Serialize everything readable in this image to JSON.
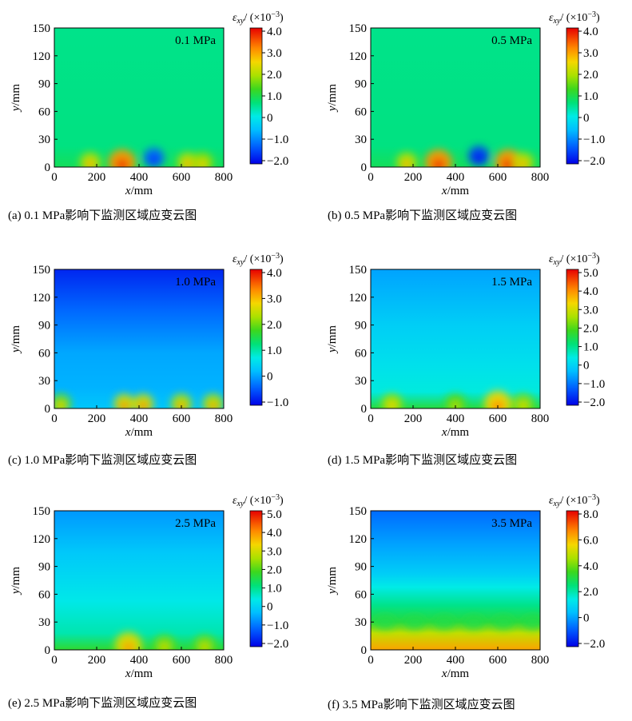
{
  "figure": {
    "charts": [
      {
        "id": "a",
        "caption": "(a) 0.1 MPa影响下监测区域应变云图",
        "pressure_label": "0.1 MPa",
        "colorbar_title": "εxy/(×10⁻³)",
        "colorbar_ticks": [
          "4.0",
          "3.0",
          "2.0",
          "1.0",
          "0",
          "−1.0",
          "−2.0"
        ],
        "colorbar_range": [
          -2.0,
          4.0
        ]
      },
      {
        "id": "b",
        "caption": "(b) 0.5 MPa影响下监测区域应变云图",
        "pressure_label": "0.5 MPa",
        "colorbar_title": "εxy/(×10⁻³)",
        "colorbar_ticks": [
          "4.0",
          "3.0",
          "2.0",
          "1.0",
          "0",
          "−1.0",
          "−2.0"
        ],
        "colorbar_range": [
          -2.0,
          4.0
        ]
      },
      {
        "id": "c",
        "caption": "(c) 1.0 MPa影响下监测区域应变云图",
        "pressure_label": "1.0 MPa",
        "colorbar_title": "εxy/(×10⁻³)",
        "colorbar_ticks": [
          "4.0",
          "3.0",
          "2.0",
          "1.0",
          "0",
          "−1.0"
        ],
        "colorbar_range": [
          -1.0,
          4.0
        ]
      },
      {
        "id": "d",
        "caption": "(d) 1.5 MPa影响下监测区域应变云图",
        "pressure_label": "1.5 MPa",
        "colorbar_title": "εxy/(×10⁻³)",
        "colorbar_ticks": [
          "5.0",
          "4.0",
          "3.0",
          "2.0",
          "1.0",
          "0",
          "−1.0",
          "−2.0"
        ],
        "colorbar_range": [
          -2.0,
          5.0
        ]
      },
      {
        "id": "e",
        "caption": "(e) 2.5 MPa影响下监测区域应变云图",
        "pressure_label": "2.5 MPa",
        "colorbar_title": "εxy/(×10⁻³)",
        "colorbar_ticks": [
          "5.0",
          "4.0",
          "3.0",
          "2.0",
          "1.0",
          "0",
          "−1.0",
          "−2.0"
        ],
        "colorbar_range": [
          -2.0,
          5.0
        ]
      },
      {
        "id": "f",
        "caption": "(f) 3.5 MPa影响下监测区域应变云图",
        "pressure_label": "3.5 MPa",
        "colorbar_title": "εxy/(×10⁻³)",
        "colorbar_ticks": [
          "8.0",
          "6.0",
          "4.0",
          "2.0",
          "0",
          "−2.0"
        ],
        "colorbar_range": [
          -3.0,
          9.0
        ]
      }
    ]
  },
  "chart_data": [
    {
      "type": "heatmap",
      "title": "0.1 MPa",
      "xlabel": "x/mm",
      "ylabel": "y/mm",
      "xlim": [
        0,
        800
      ],
      "ylim": [
        0,
        150
      ],
      "x_ticks": [
        "0",
        "200",
        "400",
        "600",
        "800"
      ],
      "y_ticks": [
        "0",
        "30",
        "60",
        "90",
        "120",
        "150"
      ],
      "colorbar_label": "εxy/(×10⁻³)",
      "colorbar_range": [
        -2.0,
        4.0
      ],
      "background_value": 0.6,
      "hotspots": [
        {
          "x": 170,
          "y": 5,
          "value": 2.0
        },
        {
          "x": 320,
          "y": 5,
          "value": 3.0
        },
        {
          "x": 470,
          "y": 10,
          "value": -1.2
        },
        {
          "x": 630,
          "y": 5,
          "value": 2.0
        },
        {
          "x": 700,
          "y": 5,
          "value": 1.8
        }
      ]
    },
    {
      "type": "heatmap",
      "title": "0.5 MPa",
      "xlabel": "x/mm",
      "ylabel": "y/mm",
      "xlim": [
        0,
        800
      ],
      "ylim": [
        0,
        150
      ],
      "x_ticks": [
        "0",
        "200",
        "400",
        "600",
        "800"
      ],
      "y_ticks": [
        "0",
        "30",
        "60",
        "90",
        "120",
        "150"
      ],
      "colorbar_label": "εxy/(×10⁻³)",
      "colorbar_range": [
        -2.0,
        4.0
      ],
      "background_value": 0.6,
      "hotspots": [
        {
          "x": 170,
          "y": 5,
          "value": 2.0
        },
        {
          "x": 320,
          "y": 5,
          "value": 3.0
        },
        {
          "x": 510,
          "y": 12,
          "value": -1.5
        },
        {
          "x": 650,
          "y": 5,
          "value": 3.0
        },
        {
          "x": 720,
          "y": 5,
          "value": 2.0
        }
      ]
    },
    {
      "type": "heatmap",
      "title": "1.0 MPa",
      "xlabel": "x/mm",
      "ylabel": "y/mm",
      "xlim": [
        0,
        800
      ],
      "ylim": [
        0,
        150
      ],
      "x_ticks": [
        "0",
        "200",
        "400",
        "600",
        "800"
      ],
      "y_ticks": [
        "0",
        "30",
        "60",
        "90",
        "120",
        "150"
      ],
      "colorbar_label": "εxy/(×10⁻³)",
      "colorbar_range": [
        -1.0,
        4.0
      ],
      "background_value": 0.0,
      "hotspots": [
        {
          "x": 30,
          "y": 5,
          "value": 2.0
        },
        {
          "x": 330,
          "y": 5,
          "value": 2.5
        },
        {
          "x": 420,
          "y": 5,
          "value": 2.5
        },
        {
          "x": 600,
          "y": 5,
          "value": 2.3
        },
        {
          "x": 750,
          "y": 5,
          "value": 2.3
        }
      ]
    },
    {
      "type": "heatmap",
      "title": "1.5 MPa",
      "xlabel": "x/mm",
      "ylabel": "y/mm",
      "xlim": [
        0,
        800
      ],
      "ylim": [
        0,
        150
      ],
      "x_ticks": [
        "0",
        "200",
        "400",
        "600",
        "800"
      ],
      "y_ticks": [
        "0",
        "30",
        "60",
        "90",
        "120",
        "150"
      ],
      "colorbar_label": "εxy/(×10⁻³)",
      "colorbar_range": [
        -2.0,
        5.0
      ],
      "background_value": 0.2,
      "hotspots": [
        {
          "x": 100,
          "y": 5,
          "value": 2.5
        },
        {
          "x": 400,
          "y": 5,
          "value": 2.0
        },
        {
          "x": 600,
          "y": 5,
          "value": 3.2
        },
        {
          "x": 720,
          "y": 5,
          "value": 2.3
        }
      ]
    },
    {
      "type": "heatmap",
      "title": "2.5 MPa",
      "xlabel": "x/mm",
      "ylabel": "y/mm",
      "xlim": [
        0,
        800
      ],
      "ylim": [
        0,
        150
      ],
      "x_ticks": [
        "0",
        "200",
        "400",
        "600",
        "800"
      ],
      "y_ticks": [
        "0",
        "30",
        "60",
        "90",
        "120",
        "150"
      ],
      "colorbar_label": "εxy/(×10⁻³)",
      "colorbar_range": [
        -2.0,
        5.0
      ],
      "background_value": 0.3,
      "hotspots": [
        {
          "x": 350,
          "y": 5,
          "value": 3.0
        },
        {
          "x": 520,
          "y": 5,
          "value": 2.2
        },
        {
          "x": 710,
          "y": 5,
          "value": 2.2
        }
      ]
    },
    {
      "type": "heatmap",
      "title": "3.5 MPa",
      "xlabel": "x/mm",
      "ylabel": "y/mm",
      "xlim": [
        0,
        800
      ],
      "ylim": [
        0,
        150
      ],
      "x_ticks": [
        "0",
        "200",
        "400",
        "600",
        "800"
      ],
      "y_ticks": [
        "0",
        "30",
        "60",
        "90",
        "120",
        "150"
      ],
      "colorbar_label": "εxy/(×10⁻³)",
      "colorbar_range": [
        -3.0,
        9.0
      ],
      "background_value": 0.0,
      "hotspots": []
    }
  ]
}
